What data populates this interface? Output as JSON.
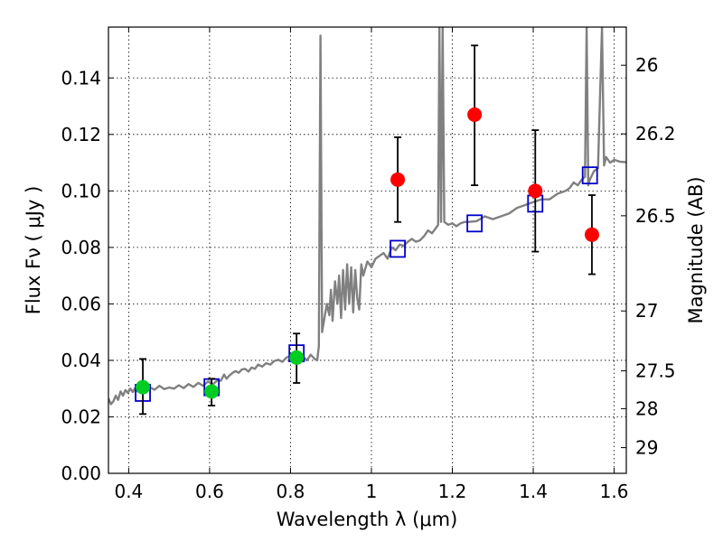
{
  "chart_data": {
    "type": "scatter",
    "xlabel": "Wavelength  λ (μm)",
    "ylabel": "Flux  Fν  ( μJy )",
    "ylabel_right": "Magnitude (AB)",
    "xlim": [
      0.35,
      1.63
    ],
    "ylim": [
      0.0,
      0.158
    ],
    "grid": true,
    "x_ticks": [
      0.4,
      0.6,
      0.8,
      1.0,
      1.2,
      1.4,
      1.6
    ],
    "x_tick_labels": [
      "0.4",
      "0.6",
      "0.8",
      "1",
      "1.2",
      "1.4",
      "1.6"
    ],
    "y_ticks": [
      0.0,
      0.02,
      0.04,
      0.06,
      0.08,
      0.1,
      0.12,
      0.14
    ],
    "y_tick_labels": [
      "0.00",
      "0.02",
      "0.04",
      "0.06",
      "0.08",
      "0.10",
      "0.12",
      "0.14"
    ],
    "right_ticks": [
      {
        "label": "26",
        "flux": 0.1445
      },
      {
        "label": "26.2",
        "flux": 0.1202
      },
      {
        "label": "26.5",
        "flux": 0.0912
      },
      {
        "label": "27",
        "flux": 0.0575
      },
      {
        "label": "27.5",
        "flux": 0.0363
      },
      {
        "label": "28",
        "flux": 0.0229
      },
      {
        "label": "29",
        "flux": 0.0091
      }
    ],
    "series": [
      {
        "kind": "line",
        "color": "#808080",
        "points": [
          [
            0.35,
            0.0265
          ],
          [
            0.356,
            0.0245
          ],
          [
            0.362,
            0.0255
          ],
          [
            0.368,
            0.0275
          ],
          [
            0.374,
            0.026
          ],
          [
            0.38,
            0.029
          ],
          [
            0.386,
            0.0275
          ],
          [
            0.392,
            0.0295
          ],
          [
            0.398,
            0.0285
          ],
          [
            0.404,
            0.03
          ],
          [
            0.41,
            0.0288
          ],
          [
            0.416,
            0.0302
          ],
          [
            0.422,
            0.029
          ],
          [
            0.428,
            0.0298
          ],
          [
            0.44,
            0.0292
          ],
          [
            0.452,
            0.0305
          ],
          [
            0.464,
            0.0296
          ],
          [
            0.476,
            0.031
          ],
          [
            0.488,
            0.0298
          ],
          [
            0.5,
            0.0304
          ],
          [
            0.512,
            0.03
          ],
          [
            0.524,
            0.0312
          ],
          [
            0.536,
            0.0302
          ],
          [
            0.548,
            0.0316
          ],
          [
            0.56,
            0.0306
          ],
          [
            0.572,
            0.032
          ],
          [
            0.584,
            0.031
          ],
          [
            0.596,
            0.0325
          ],
          [
            0.608,
            0.0315
          ],
          [
            0.62,
            0.033
          ],
          [
            0.628,
            0.0328
          ],
          [
            0.636,
            0.035
          ],
          [
            0.642,
            0.0335
          ],
          [
            0.648,
            0.0345
          ],
          [
            0.656,
            0.0355
          ],
          [
            0.664,
            0.0362
          ],
          [
            0.672,
            0.0356
          ],
          [
            0.68,
            0.0368
          ],
          [
            0.688,
            0.037
          ],
          [
            0.696,
            0.036
          ],
          [
            0.704,
            0.0375
          ],
          [
            0.712,
            0.037
          ],
          [
            0.72,
            0.0385
          ],
          [
            0.73,
            0.0378
          ],
          [
            0.74,
            0.039
          ],
          [
            0.75,
            0.0385
          ],
          [
            0.76,
            0.0398
          ],
          [
            0.77,
            0.0402
          ],
          [
            0.78,
            0.0395
          ],
          [
            0.79,
            0.041
          ],
          [
            0.8,
            0.0415
          ],
          [
            0.81,
            0.0405
          ],
          [
            0.82,
            0.042
          ],
          [
            0.83,
            0.0415
          ],
          [
            0.84,
            0.04
          ],
          [
            0.85,
            0.042
          ],
          [
            0.86,
            0.0405
          ],
          [
            0.866,
            0.04
          ],
          [
            0.87,
            0.045
          ],
          [
            0.874,
            0.155
          ],
          [
            0.878,
            0.05
          ],
          [
            0.884,
            0.055
          ],
          [
            0.89,
            0.06
          ],
          [
            0.896,
            0.056
          ],
          [
            0.9,
            0.065
          ],
          [
            0.904,
            0.054
          ],
          [
            0.91,
            0.068
          ],
          [
            0.916,
            0.06
          ],
          [
            0.92,
            0.07
          ],
          [
            0.925,
            0.055
          ],
          [
            0.93,
            0.072
          ],
          [
            0.935,
            0.058
          ],
          [
            0.94,
            0.074
          ],
          [
            0.945,
            0.06
          ],
          [
            0.95,
            0.073
          ],
          [
            0.955,
            0.057
          ],
          [
            0.96,
            0.072
          ],
          [
            0.965,
            0.062
          ],
          [
            0.97,
            0.058
          ],
          [
            0.975,
            0.074
          ],
          [
            0.98,
            0.07
          ],
          [
            0.99,
            0.075
          ],
          [
            1.0,
            0.073
          ],
          [
            1.01,
            0.076
          ],
          [
            1.02,
            0.077
          ],
          [
            1.03,
            0.078
          ],
          [
            1.04,
            0.076
          ],
          [
            1.05,
            0.08
          ],
          [
            1.06,
            0.079
          ],
          [
            1.07,
            0.081
          ],
          [
            1.08,
            0.0805
          ],
          [
            1.09,
            0.082
          ],
          [
            1.1,
            0.083
          ],
          [
            1.11,
            0.082
          ],
          [
            1.12,
            0.0825
          ],
          [
            1.13,
            0.084
          ],
          [
            1.14,
            0.086
          ],
          [
            1.15,
            0.085
          ],
          [
            1.16,
            0.087
          ],
          [
            1.165,
            0.088
          ],
          [
            1.168,
            0.158
          ],
          [
            1.172,
            0.089
          ],
          [
            1.176,
            0.158
          ],
          [
            1.18,
            0.089
          ],
          [
            1.19,
            0.088
          ],
          [
            1.2,
            0.0885
          ],
          [
            1.21,
            0.0875
          ],
          [
            1.22,
            0.0885
          ],
          [
            1.23,
            0.089
          ],
          [
            1.24,
            0.089
          ],
          [
            1.26,
            0.0893
          ],
          [
            1.28,
            0.091
          ],
          [
            1.3,
            0.09
          ],
          [
            1.32,
            0.091
          ],
          [
            1.34,
            0.092
          ],
          [
            1.36,
            0.094
          ],
          [
            1.38,
            0.095
          ],
          [
            1.4,
            0.096
          ],
          [
            1.42,
            0.097
          ],
          [
            1.44,
            0.097
          ],
          [
            1.46,
            0.099
          ],
          [
            1.48,
            0.1
          ],
          [
            1.49,
            0.101
          ],
          [
            1.5,
            0.103
          ],
          [
            1.51,
            0.102
          ],
          [
            1.52,
            0.104
          ],
          [
            1.528,
            0.105
          ],
          [
            1.532,
            0.158
          ],
          [
            1.536,
            0.102
          ],
          [
            1.54,
            0.104
          ],
          [
            1.55,
            0.107
          ],
          [
            1.56,
            0.108
          ],
          [
            1.57,
            0.158
          ],
          [
            1.575,
            0.109
          ],
          [
            1.58,
            0.112
          ],
          [
            1.59,
            0.11
          ],
          [
            1.6,
            0.111
          ],
          [
            1.615,
            0.1103
          ],
          [
            1.63,
            0.1102
          ]
        ]
      },
      {
        "kind": "points-open-square",
        "color": "#0000cc",
        "points": [
          [
            0.435,
            0.0285
          ],
          [
            0.605,
            0.0305
          ],
          [
            0.815,
            0.0425
          ],
          [
            1.065,
            0.0795
          ],
          [
            1.255,
            0.0885
          ],
          [
            1.405,
            0.0955
          ],
          [
            1.54,
            0.1055
          ]
        ]
      },
      {
        "kind": "points-filled-circle",
        "color": "#00cc22",
        "points": [
          {
            "x": 0.435,
            "y": 0.0305,
            "err_lo": 0.0095,
            "err_hi": 0.01
          },
          {
            "x": 0.605,
            "y": 0.029,
            "err_lo": 0.005,
            "err_hi": 0.0045
          },
          {
            "x": 0.815,
            "y": 0.041,
            "err_lo": 0.009,
            "err_hi": 0.0085
          }
        ]
      },
      {
        "kind": "points-filled-circle",
        "color": "#ff0000",
        "points": [
          {
            "x": 1.065,
            "y": 0.104,
            "err_lo": 0.015,
            "err_hi": 0.015
          },
          {
            "x": 1.255,
            "y": 0.127,
            "err_lo": 0.025,
            "err_hi": 0.0245
          },
          {
            "x": 1.405,
            "y": 0.1,
            "err_lo": 0.0215,
            "err_hi": 0.0215
          },
          {
            "x": 1.545,
            "y": 0.0845,
            "err_lo": 0.014,
            "err_hi": 0.014
          }
        ]
      }
    ]
  }
}
